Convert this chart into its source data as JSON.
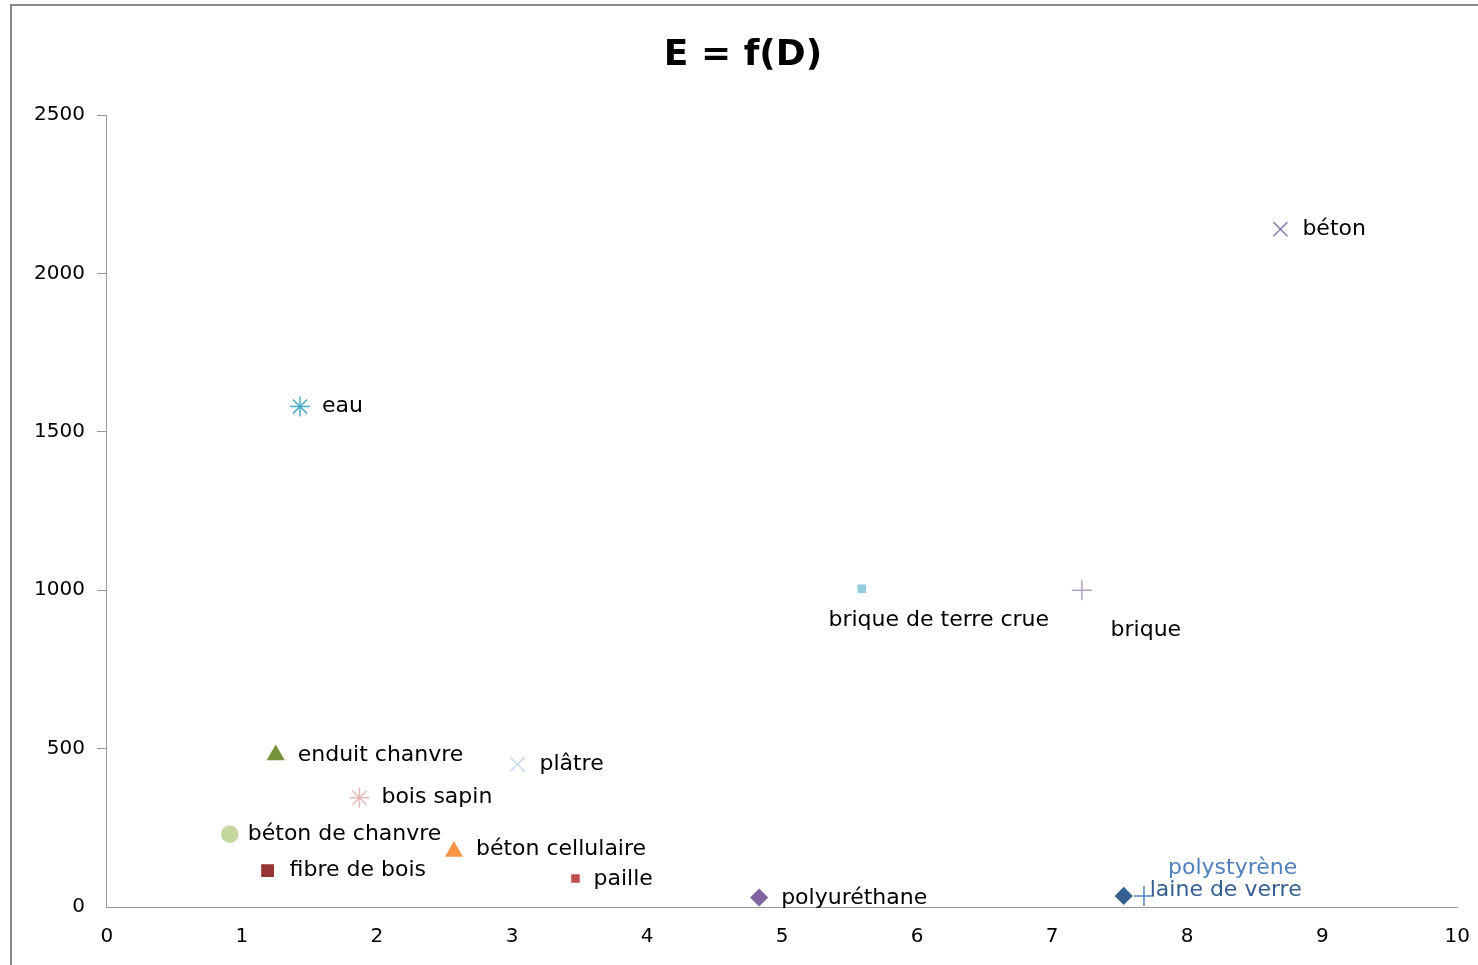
{
  "chart_data": {
    "type": "scatter",
    "title": "E = f(D)",
    "xlim": [
      0,
      10
    ],
    "xticks": [
      0,
      1,
      2,
      3,
      4,
      5,
      6,
      7,
      8,
      9,
      10
    ],
    "ylim": [
      0,
      2500
    ],
    "yticks": [
      0,
      500,
      1000,
      1500,
      2000,
      2500
    ],
    "grid": false,
    "legend": false,
    "series": [
      {
        "name": "béton",
        "color": "#8d7fad",
        "marker": "x",
        "x": [
          8.69
        ],
        "values": [
          2140
        ]
      },
      {
        "name": "eau",
        "color": "#4bacc6",
        "marker": "cross",
        "x": [
          1.43
        ],
        "values": [
          1580
        ]
      },
      {
        "name": "brique de terre crue",
        "color": "#93cddd",
        "marker": "square",
        "x": [
          5.59
        ],
        "values": [
          1005
        ]
      },
      {
        "name": "brique",
        "color": "#b3a2c7",
        "marker": "plus",
        "x": [
          7.22
        ],
        "values": [
          1000
        ]
      },
      {
        "name": "enduit chanvre",
        "color": "#77933c",
        "marker": "triangle",
        "x": [
          1.25
        ],
        "values": [
          480
        ]
      },
      {
        "name": "plâtre",
        "color": "#c6d9f1",
        "marker": "x",
        "x": [
          3.04
        ],
        "values": [
          450
        ]
      },
      {
        "name": "bois sapin",
        "color": "#e6b9b8",
        "marker": "cross",
        "x": [
          1.87
        ],
        "values": [
          345
        ]
      },
      {
        "name": "béton de chanvre",
        "color": "#c3d69b",
        "marker": "circle",
        "x": [
          0.91
        ],
        "values": [
          230
        ]
      },
      {
        "name": "béton cellulaire",
        "color": "#f79646",
        "marker": "triangle",
        "x": [
          2.57
        ],
        "values": [
          175
        ]
      },
      {
        "name": "fibre de bois",
        "color": "#953735",
        "marker": "square",
        "x": [
          1.19
        ],
        "values": [
          115
        ]
      },
      {
        "name": "paille",
        "color": "#c0504d",
        "marker": "square",
        "x": [
          3.47
        ],
        "values": [
          90
        ]
      },
      {
        "name": "polyuréthane",
        "color": "#8064a2",
        "marker": "diamond",
        "x": [
          4.83
        ],
        "values": [
          30
        ]
      },
      {
        "name": "polystyrène",
        "color": "#4f81bd",
        "marker": "plus",
        "x": [
          7.68
        ],
        "values": [
          35
        ]
      },
      {
        "name": "laine de verre",
        "color": "#376092",
        "marker": "diamond",
        "x": [
          7.53
        ],
        "values": [
          35
        ]
      }
    ]
  }
}
